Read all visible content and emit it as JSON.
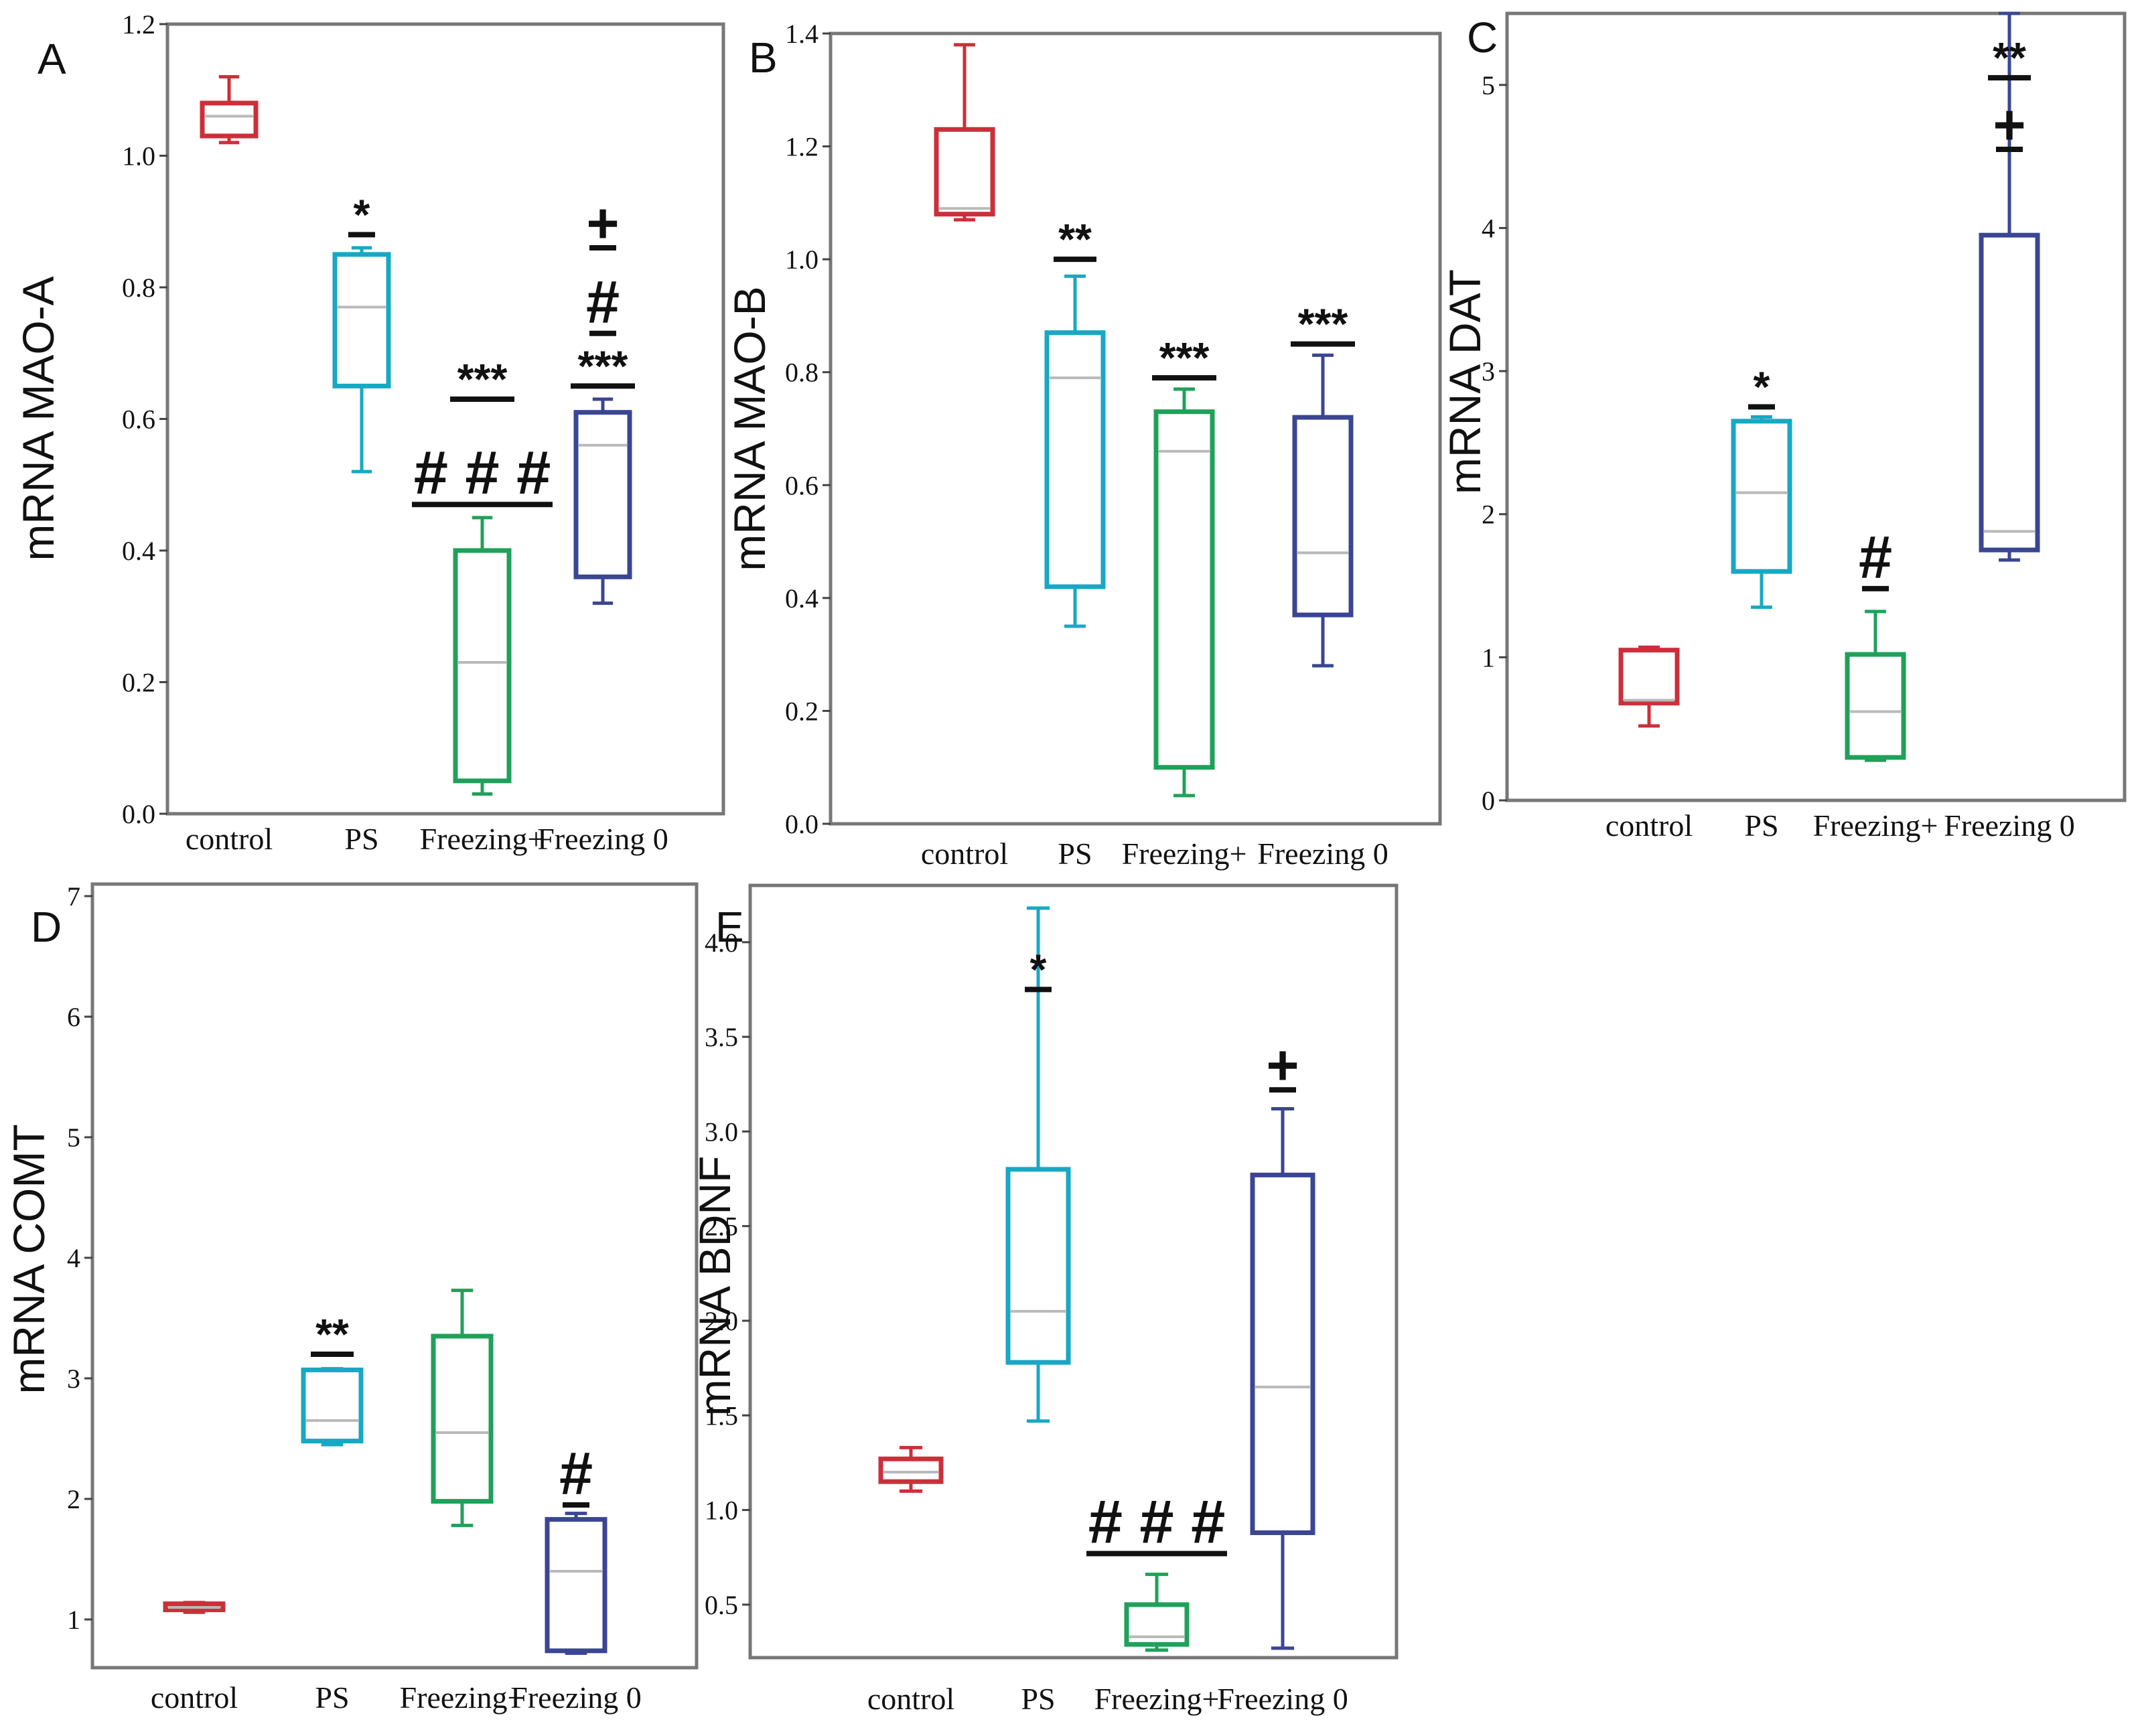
{
  "figure": {
    "background": "#ffffff"
  },
  "chart_data": [
    {
      "type": "box",
      "panel": "A",
      "ylabel": "mRNA MAO-A",
      "ylim": [
        0,
        1.2
      ],
      "yticks": [
        0.0,
        0.2,
        0.4,
        0.6,
        0.8,
        1.0,
        1.2
      ],
      "ytick_labels": [
        "0.0",
        "0.2",
        "0.4",
        "0.6",
        "0.8",
        "1.0",
        "1.2"
      ],
      "categories": [
        "control",
        "PS",
        "Freezing+",
        "Freezing 0"
      ],
      "boxes": [
        {
          "group": "control",
          "color": "#cc2f3a",
          "min": 1.02,
          "q1": 1.03,
          "median": 1.06,
          "q3": 1.08,
          "max": 1.12
        },
        {
          "group": "PS",
          "color": "#17a8c4",
          "min": 0.52,
          "q1": 0.65,
          "median": 0.77,
          "q3": 0.85,
          "max": 0.86
        },
        {
          "group": "Freezing+",
          "color": "#1fa15a",
          "min": 0.03,
          "q1": 0.05,
          "median": 0.23,
          "q3": 0.4,
          "max": 0.45
        },
        {
          "group": "Freezing 0",
          "color": "#3a4693",
          "min": 0.32,
          "q1": 0.36,
          "median": 0.56,
          "q3": 0.61,
          "max": 0.63
        }
      ],
      "annotations": [
        {
          "group": "PS",
          "label": "*",
          "y": 0.88
        },
        {
          "group": "Freezing+",
          "label": "***",
          "y": 0.63
        },
        {
          "group": "Freezing+",
          "label": "###",
          "y": 0.47,
          "wide": true
        },
        {
          "group": "Freezing 0",
          "label": "***",
          "y": 0.65
        },
        {
          "group": "Freezing 0",
          "label": "#",
          "y": 0.73
        },
        {
          "group": "Freezing 0",
          "label": "+",
          "y": 0.86
        }
      ]
    },
    {
      "type": "box",
      "panel": "B",
      "ylabel": "mRNA MAO-B",
      "ylim": [
        0,
        1.4
      ],
      "yticks": [
        0.0,
        0.2,
        0.4,
        0.6,
        0.8,
        1.0,
        1.2,
        1.4
      ],
      "ytick_labels": [
        "0.0",
        "0.2",
        "0.4",
        "0.6",
        "0.8",
        "1.0",
        "1.2",
        "1.4"
      ],
      "categories": [
        "control",
        "PS",
        "Freezing+",
        "Freezing 0"
      ],
      "boxes": [
        {
          "group": "control",
          "color": "#cc2f3a",
          "min": 1.07,
          "q1": 1.08,
          "median": 1.09,
          "q3": 1.23,
          "max": 1.38
        },
        {
          "group": "PS",
          "color": "#17a8c4",
          "min": 0.35,
          "q1": 0.42,
          "median": 0.79,
          "q3": 0.87,
          "max": 0.97
        },
        {
          "group": "Freezing+",
          "color": "#1fa15a",
          "min": 0.05,
          "q1": 0.1,
          "median": 0.66,
          "q3": 0.73,
          "max": 0.77
        },
        {
          "group": "Freezing 0",
          "color": "#3a4693",
          "min": 0.28,
          "q1": 0.37,
          "median": 0.48,
          "q3": 0.72,
          "max": 0.83
        }
      ],
      "annotations": [
        {
          "group": "PS",
          "label": "**",
          "y": 1.0
        },
        {
          "group": "Freezing+",
          "label": "***",
          "y": 0.79
        },
        {
          "group": "Freezing 0",
          "label": "***",
          "y": 0.85
        }
      ]
    },
    {
      "type": "box",
      "panel": "C",
      "ylabel": "mRNA DAT",
      "ylim": [
        0,
        5.5
      ],
      "yticks": [
        0,
        1,
        2,
        3,
        4,
        5
      ],
      "ytick_labels": [
        "0",
        "1",
        "2",
        "3",
        "4",
        "5"
      ],
      "categories": [
        "control",
        "PS",
        "Freezing+",
        "Freezing 0"
      ],
      "boxes": [
        {
          "group": "control",
          "color": "#cc2f3a",
          "min": 0.52,
          "q1": 0.68,
          "median": 0.7,
          "q3": 1.05,
          "max": 1.07
        },
        {
          "group": "PS",
          "color": "#17a8c4",
          "min": 1.35,
          "q1": 1.6,
          "median": 2.15,
          "q3": 2.65,
          "max": 2.68
        },
        {
          "group": "Freezing+",
          "color": "#1fa15a",
          "min": 0.28,
          "q1": 0.3,
          "median": 0.62,
          "q3": 1.02,
          "max": 1.32
        },
        {
          "group": "Freezing 0",
          "color": "#3a4693",
          "min": 1.68,
          "q1": 1.75,
          "median": 1.88,
          "q3": 3.95,
          "max": 5.5
        }
      ],
      "annotations": [
        {
          "group": "PS",
          "label": "*",
          "y": 2.75
        },
        {
          "group": "Freezing+",
          "label": "#",
          "y": 1.48
        },
        {
          "group": "Freezing 0",
          "label": "+",
          "y": 4.55
        },
        {
          "group": "Freezing 0",
          "label": "**",
          "y": 5.05
        }
      ]
    },
    {
      "type": "box",
      "panel": "D",
      "ylabel": "mRNA COMT",
      "ylim": [
        0.6,
        7.1
      ],
      "yticks": [
        1,
        2,
        3,
        4,
        5,
        6,
        7
      ],
      "ytick_labels": [
        "1",
        "2",
        "3",
        "4",
        "5",
        "6",
        "7"
      ],
      "categories": [
        "control",
        "PS",
        "Freezing+",
        "Freezing 0"
      ],
      "boxes": [
        {
          "group": "control",
          "color": "#cc2f3a",
          "min": 1.06,
          "q1": 1.08,
          "median": 1.1,
          "q3": 1.13,
          "max": 1.14
        },
        {
          "group": "PS",
          "color": "#17a8c4",
          "min": 2.45,
          "q1": 2.48,
          "median": 2.65,
          "q3": 3.07,
          "max": 3.08
        },
        {
          "group": "Freezing+",
          "color": "#1fa15a",
          "min": 1.78,
          "q1": 1.98,
          "median": 2.55,
          "q3": 3.35,
          "max": 3.73
        },
        {
          "group": "Freezing 0",
          "color": "#3a4693",
          "min": 0.72,
          "q1": 0.74,
          "median": 1.4,
          "q3": 1.83,
          "max": 1.88
        }
      ],
      "annotations": [
        {
          "group": "PS",
          "label": "**",
          "y": 3.2
        },
        {
          "group": "Freezing 0",
          "label": "#",
          "y": 1.95
        }
      ]
    },
    {
      "type": "box",
      "panel": "E",
      "ylabel": "mRNA BDNF",
      "ylim": [
        0.22,
        4.3
      ],
      "yticks": [
        0.5,
        1.0,
        1.5,
        2.0,
        2.5,
        3.0,
        3.5,
        4.0
      ],
      "ytick_labels": [
        "0.5",
        "1.0",
        "1.5",
        "2.0",
        "2.5",
        "3.0",
        "3.5",
        "4.0"
      ],
      "categories": [
        "control",
        "PS",
        "Freezing+",
        "Freezing 0"
      ],
      "boxes": [
        {
          "group": "control",
          "color": "#cc2f3a",
          "min": 1.1,
          "q1": 1.15,
          "median": 1.2,
          "q3": 1.27,
          "max": 1.33
        },
        {
          "group": "PS",
          "color": "#17a8c4",
          "min": 1.47,
          "q1": 1.78,
          "median": 2.05,
          "q3": 2.8,
          "max": 4.18
        },
        {
          "group": "Freezing+",
          "color": "#1fa15a",
          "min": 0.26,
          "q1": 0.29,
          "median": 0.33,
          "q3": 0.5,
          "max": 0.66
        },
        {
          "group": "Freezing 0",
          "color": "#3a4693",
          "min": 0.27,
          "q1": 0.88,
          "median": 1.65,
          "q3": 2.77,
          "max": 3.12
        }
      ],
      "annotations": [
        {
          "group": "PS",
          "label": "*",
          "y": 3.75
        },
        {
          "group": "Freezing+",
          "label": "###",
          "y": 0.77,
          "wide": true
        },
        {
          "group": "Freezing 0",
          "label": "+",
          "y": 3.22
        }
      ]
    }
  ]
}
